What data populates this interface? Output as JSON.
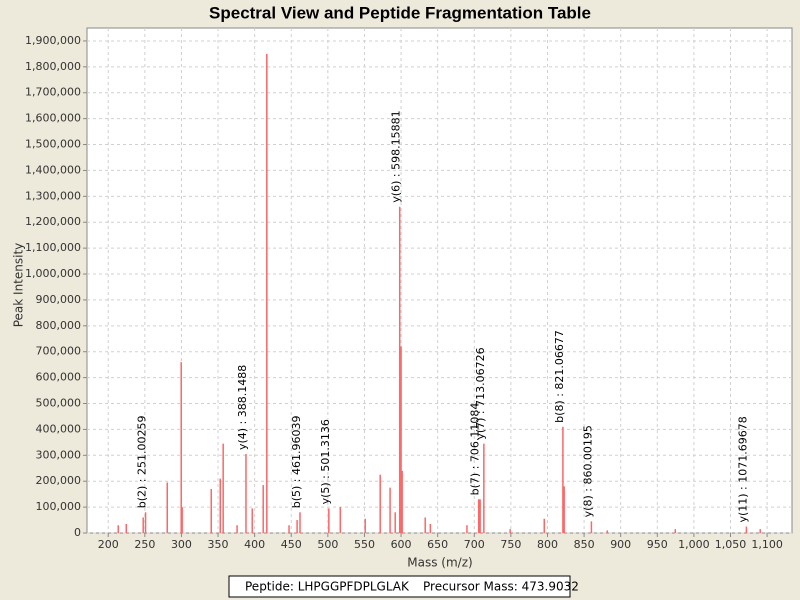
{
  "chart_data": {
    "type": "spectrum",
    "title": "Spectral View and Peptide Fragmentation Table",
    "x_label": "Mass (m/z)",
    "y_label": "Peak Intensity",
    "xlim": [
      171,
      1134
    ],
    "ylim": [
      0,
      1950000
    ],
    "xticks": [
      200,
      250,
      300,
      350,
      400,
      450,
      500,
      550,
      600,
      650,
      700,
      750,
      800,
      850,
      900,
      950,
      {
        "value": 1000,
        "label": "1,000"
      },
      {
        "value": 1050,
        "label": "1,050"
      },
      {
        "value": 1100,
        "label": "1,100"
      }
    ],
    "yticks": [
      0,
      {
        "value": 100000,
        "label": "100,000"
      },
      {
        "value": 200000,
        "label": "200,000"
      },
      {
        "value": 300000,
        "label": "300,000"
      },
      {
        "value": 400000,
        "label": "400,000"
      },
      {
        "value": 500000,
        "label": "500,000"
      },
      {
        "value": 600000,
        "label": "600,000"
      },
      {
        "value": 700000,
        "label": "700,000"
      },
      {
        "value": 800000,
        "label": "800,000"
      },
      {
        "value": 900000,
        "label": "900,000"
      },
      {
        "value": 1000000,
        "label": "1,000,000"
      },
      {
        "value": 1100000,
        "label": "1,100,000"
      },
      {
        "value": 1200000,
        "label": "1,200,000"
      },
      {
        "value": 1300000,
        "label": "1,300,000"
      },
      {
        "value": 1400000,
        "label": "1,400,000"
      },
      {
        "value": 1500000,
        "label": "1,500,000"
      },
      {
        "value": 1600000,
        "label": "1,600,000"
      },
      {
        "value": 1700000,
        "label": "1,700,000"
      },
      {
        "value": 1800000,
        "label": "1,800,000"
      },
      {
        "value": 1900000,
        "label": "1,900,000"
      }
    ],
    "grid": true,
    "color": "#ff6666",
    "x": [
      213.7,
      224.6,
      247.8,
      280.6,
      299.7,
      301,
      340.7,
      353,
      357,
      376,
      396.7,
      411.7,
      416.6,
      447,
      458,
      517,
      551,
      571.5,
      585,
      592,
      600,
      601.5,
      633,
      640,
      690,
      708,
      749,
      795.6,
      822.8,
      881.6,
      974.6,
      1090.6
    ],
    "values": [
      30000,
      35000,
      60000,
      195000,
      660000,
      100000,
      170000,
      210000,
      345000,
      30000,
      95000,
      185000,
      1850000,
      30000,
      50000,
      100000,
      55000,
      225000,
      175000,
      80000,
      720000,
      240000,
      60000,
      35000,
      30000,
      130000,
      15000,
      55000,
      180000,
      10000,
      15000,
      15000
    ],
    "annotations": [
      {
        "label": "b(2) : 251.00259",
        "x": 251.00259,
        "y": 80000
      },
      {
        "label": "y(4) : 388.1488",
        "x": 388.1488,
        "y": 305000
      },
      {
        "label": "b(5) : 461.96039",
        "x": 461.96039,
        "y": 80000
      },
      {
        "label": "y(5) : 501.3136",
        "x": 501.3136,
        "y": 95000
      },
      {
        "label": "y(6) : 598.15881",
        "x": 598.15881,
        "y": 1260000
      },
      {
        "label": "b(7) : 706.11084",
        "x": 706.11084,
        "y": 130000
      },
      {
        "label": "y(7) : 713.06726",
        "x": 713.06726,
        "y": 345000
      },
      {
        "label": "b(8) : 821.06677",
        "x": 821.06677,
        "y": 410000
      },
      {
        "label": "y(8) : 860.00195",
        "x": 860.00195,
        "y": 45000
      },
      {
        "label": "y(11) : 1071.69678",
        "x": 1071.69678,
        "y": 25000
      }
    ],
    "legend": [
      "Peptide: LHPGGPFDPLGLAK",
      "Precursor Mass: 473.9032"
    ]
  }
}
